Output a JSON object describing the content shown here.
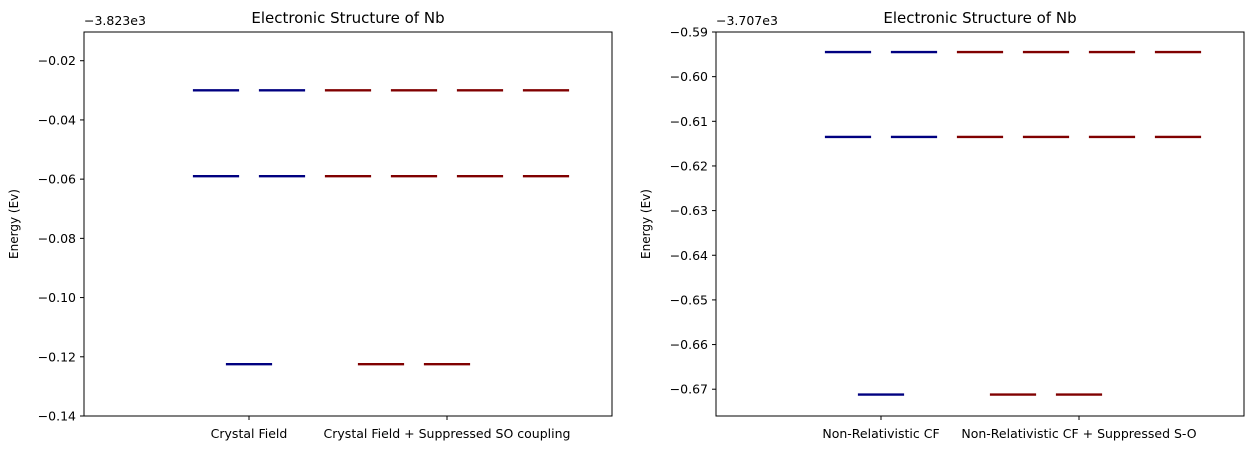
{
  "chart_data": [
    {
      "type": "energy-level",
      "title": "Electronic Structure of Nb",
      "ylabel": "Energy (Ev)",
      "offset_text": "−3.823e3",
      "ylim": [
        -0.14,
        -0.0103
      ],
      "yticks": [
        -0.14,
        -0.12,
        -0.1,
        -0.08,
        -0.06,
        -0.04,
        -0.02
      ],
      "ytick_labels": [
        "−0.14",
        "−0.12",
        "−0.10",
        "−0.08",
        "−0.06",
        "−0.04",
        "−0.02"
      ],
      "categories": [
        "Crystal Field",
        "Crystal Field + Suppressed SO coupling"
      ],
      "category_x": [
        2.0,
        5.0
      ],
      "xlim": [
        -0.5,
        7.5
      ],
      "series": [
        {
          "color": "#000080",
          "levels": [
            {
              "x": 1.5,
              "y": -0.03
            },
            {
              "x": 2.5,
              "y": -0.03
            },
            {
              "x": 1.5,
              "y": -0.059
            },
            {
              "x": 2.5,
              "y": -0.059
            },
            {
              "x": 2.0,
              "y": -0.1225
            }
          ]
        },
        {
          "color": "#800000",
          "levels": [
            {
              "x": 3.5,
              "y": -0.03
            },
            {
              "x": 4.5,
              "y": -0.03
            },
            {
              "x": 5.5,
              "y": -0.03
            },
            {
              "x": 6.5,
              "y": -0.03
            },
            {
              "x": 3.5,
              "y": -0.059
            },
            {
              "x": 4.5,
              "y": -0.059
            },
            {
              "x": 5.5,
              "y": -0.059
            },
            {
              "x": 6.5,
              "y": -0.059
            },
            {
              "x": 4.0,
              "y": -0.1225
            },
            {
              "x": 5.0,
              "y": -0.1225
            }
          ]
        }
      ]
    },
    {
      "type": "energy-level",
      "title": "Electronic Structure of Nb",
      "ylabel": "Energy (Ev)",
      "offset_text": "−3.707e3",
      "ylim": [
        -0.676,
        -0.59
      ],
      "yticks": [
        -0.67,
        -0.66,
        -0.65,
        -0.64,
        -0.63,
        -0.62,
        -0.61,
        -0.6,
        -0.59
      ],
      "ytick_labels": [
        "−0.67",
        "−0.66",
        "−0.65",
        "−0.64",
        "−0.63",
        "−0.62",
        "−0.61",
        "−0.60",
        "−0.59"
      ],
      "categories": [
        "Non-Relativistic CF",
        "Non-Relativistic CF + Suppressed S-O"
      ],
      "category_x": [
        2.0,
        5.0
      ],
      "xlim": [
        -0.5,
        7.5
      ],
      "series": [
        {
          "color": "#000080",
          "levels": [
            {
              "x": 1.5,
              "y": -0.5945
            },
            {
              "x": 2.5,
              "y": -0.5945
            },
            {
              "x": 1.5,
              "y": -0.6135
            },
            {
              "x": 2.5,
              "y": -0.6135
            },
            {
              "x": 2.0,
              "y": -0.6712
            }
          ]
        },
        {
          "color": "#800000",
          "levels": [
            {
              "x": 3.5,
              "y": -0.5945
            },
            {
              "x": 4.5,
              "y": -0.5945
            },
            {
              "x": 5.5,
              "y": -0.5945
            },
            {
              "x": 6.5,
              "y": -0.5945
            },
            {
              "x": 3.5,
              "y": -0.6135
            },
            {
              "x": 4.5,
              "y": -0.6135
            },
            {
              "x": 5.5,
              "y": -0.6135
            },
            {
              "x": 6.5,
              "y": -0.6135
            },
            {
              "x": 4.0,
              "y": -0.6712
            },
            {
              "x": 5.0,
              "y": -0.6712
            }
          ]
        }
      ]
    }
  ]
}
